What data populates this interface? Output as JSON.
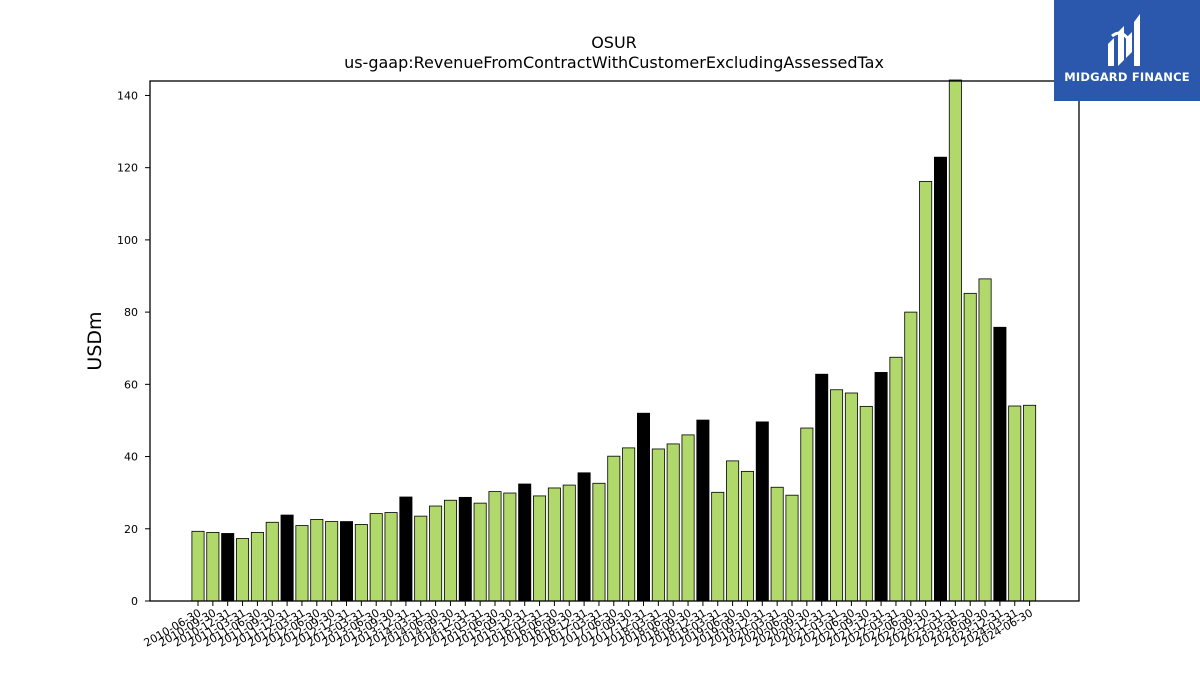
{
  "brand": {
    "name": "MIDGARD FINANCE",
    "color": "#2b58ad",
    "icon": "midgard-logo-icon"
  },
  "chart_data": {
    "type": "bar",
    "title": "OSUR",
    "subtitle": "us-gaap:RevenueFromContractWithCustomerExcludingAssessedTax",
    "xlabel": "",
    "ylabel": "USDm",
    "ylim": [
      0,
      144
    ],
    "yticks": [
      0,
      20,
      40,
      60,
      80,
      100,
      120,
      140
    ],
    "grid": false,
    "colors": {
      "quarter": "#b0d86a",
      "fiscal_q4": "#000000",
      "edge": "#000000"
    },
    "categories": [
      "2010-06-30",
      "2010-09-30",
      "2010-12-31",
      "2011-03-31",
      "2011-06-30",
      "2011-09-30",
      "2011-12-31",
      "2012-03-31",
      "2012-06-30",
      "2012-09-30",
      "2012-12-31",
      "2013-03-31",
      "2013-06-30",
      "2013-09-30",
      "2013-12-31",
      "2014-03-31",
      "2014-06-30",
      "2014-09-30",
      "2014-12-31",
      "2015-03-31",
      "2015-06-30",
      "2015-09-30",
      "2015-12-31",
      "2016-03-31",
      "2016-06-30",
      "2016-09-30",
      "2016-12-31",
      "2017-03-31",
      "2017-06-30",
      "2017-09-30",
      "2017-12-31",
      "2018-03-31",
      "2018-06-30",
      "2018-09-30",
      "2018-12-31",
      "2019-03-31",
      "2019-06-30",
      "2019-09-30",
      "2019-12-31",
      "2020-03-31",
      "2020-06-30",
      "2020-09-30",
      "2020-12-31",
      "2021-03-31",
      "2021-06-30",
      "2021-09-30",
      "2021-12-31",
      "2022-03-31",
      "2022-06-30",
      "2022-09-30",
      "2022-12-31",
      "2023-03-31",
      "2023-06-30",
      "2023-09-30",
      "2023-12-31",
      "2024-03-31",
      "2024-06-30"
    ],
    "values": [
      19.3,
      19.0,
      18.7,
      17.3,
      19.0,
      21.8,
      23.8,
      20.9,
      22.6,
      22.0,
      22.0,
      21.2,
      24.2,
      24.5,
      28.8,
      23.5,
      26.3,
      27.9,
      28.7,
      27.1,
      30.3,
      29.9,
      32.4,
      29.1,
      31.3,
      32.1,
      35.5,
      32.6,
      40.1,
      42.4,
      52.0,
      42.1,
      43.5,
      46.0,
      50.1,
      30.1,
      38.8,
      35.9,
      49.6,
      31.5,
      29.3,
      47.9,
      62.8,
      58.5,
      57.6,
      53.9,
      63.3,
      67.5,
      80.0,
      116.2,
      122.9,
      144.5,
      85.2,
      89.2,
      75.8,
      54.0,
      54.2
    ],
    "highlight": [
      false,
      false,
      true,
      false,
      false,
      false,
      true,
      false,
      false,
      false,
      true,
      false,
      false,
      false,
      true,
      false,
      false,
      false,
      true,
      false,
      false,
      false,
      true,
      false,
      false,
      false,
      true,
      false,
      false,
      false,
      true,
      false,
      false,
      false,
      true,
      false,
      false,
      false,
      true,
      false,
      false,
      false,
      true,
      false,
      false,
      false,
      true,
      false,
      false,
      false,
      true,
      false,
      false,
      false,
      true,
      false,
      false
    ]
  }
}
